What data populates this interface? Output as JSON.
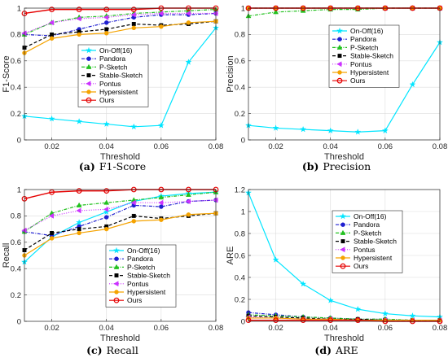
{
  "colors": {
    "On-Off(16)": "#00e5ff",
    "Pandora": "#1f1fd0",
    "P-Sketch": "#22c11f",
    "Stable-Sketch": "#000000",
    "Pontus": "#cc33ff",
    "Hypersistent": "#f5a300",
    "Ours": "#e60000"
  },
  "chart_data": [
    {
      "type": "line",
      "caption_label": "(a)",
      "caption_text": "F1-Score",
      "xlabel": "Threshold",
      "ylabel": "F1-Score",
      "xlim": [
        0.01,
        0.08
      ],
      "ylim": [
        0,
        1
      ],
      "xticks": [
        "0.02",
        "0.04",
        "0.06",
        "0.08"
      ],
      "yticks": [
        "0",
        "0.2",
        "0.4",
        "0.6",
        "0.8",
        "1"
      ],
      "grid": true,
      "legend_position": "center-right",
      "x": [
        0.01,
        0.02,
        0.03,
        0.04,
        0.05,
        0.06,
        0.07,
        0.08
      ],
      "series": [
        {
          "name": "On-Off(16)",
          "values": [
            0.18,
            0.16,
            0.14,
            0.12,
            0.1,
            0.11,
            0.59,
            0.85
          ]
        },
        {
          "name": "Pandora",
          "values": [
            0.8,
            0.79,
            0.84,
            0.89,
            0.93,
            0.95,
            0.95,
            0.96
          ]
        },
        {
          "name": "P-Sketch",
          "values": [
            0.8,
            0.89,
            0.93,
            0.94,
            0.96,
            0.97,
            0.98,
            0.99
          ]
        },
        {
          "name": "Stable-Sketch",
          "values": [
            0.7,
            0.8,
            0.82,
            0.84,
            0.88,
            0.87,
            0.88,
            0.9
          ]
        },
        {
          "name": "Pontus",
          "values": [
            0.81,
            0.89,
            0.92,
            0.93,
            0.95,
            0.96,
            0.96,
            0.96
          ]
        },
        {
          "name": "Hypersistent",
          "values": [
            0.66,
            0.77,
            0.8,
            0.81,
            0.85,
            0.86,
            0.89,
            0.9
          ]
        },
        {
          "name": "Ours",
          "values": [
            0.96,
            0.99,
            0.99,
            0.99,
            0.99,
            1.0,
            1.0,
            1.0
          ]
        }
      ]
    },
    {
      "type": "line",
      "caption_label": "(b)",
      "caption_text": "Precision",
      "xlabel": "Threshold",
      "ylabel": "Precision",
      "xlim": [
        0.01,
        0.08
      ],
      "ylim": [
        0,
        1
      ],
      "xticks": [
        "0.02",
        "0.04",
        "0.06",
        "0.08"
      ],
      "yticks": [
        "0",
        "0.2",
        "0.4",
        "0.6",
        "0.8",
        "1"
      ],
      "grid": true,
      "legend_position": "center-right",
      "x": [
        0.01,
        0.02,
        0.03,
        0.04,
        0.05,
        0.06,
        0.07,
        0.08
      ],
      "series": [
        {
          "name": "On-Off(16)",
          "values": [
            0.11,
            0.09,
            0.08,
            0.07,
            0.06,
            0.07,
            0.42,
            0.74
          ]
        },
        {
          "name": "Pandora",
          "values": [
            1.0,
            1.0,
            1.0,
            1.0,
            1.0,
            1.0,
            1.0,
            1.0
          ]
        },
        {
          "name": "P-Sketch",
          "values": [
            0.94,
            0.97,
            0.98,
            0.99,
            0.99,
            1.0,
            1.0,
            1.0
          ]
        },
        {
          "name": "Stable-Sketch",
          "values": [
            1.0,
            1.0,
            1.0,
            1.0,
            1.0,
            1.0,
            1.0,
            1.0
          ]
        },
        {
          "name": "Pontus",
          "values": [
            1.0,
            1.0,
            1.0,
            1.0,
            1.0,
            1.0,
            1.0,
            1.0
          ]
        },
        {
          "name": "Hypersistent",
          "values": [
            1.0,
            1.0,
            1.0,
            1.0,
            1.0,
            1.0,
            1.0,
            1.0
          ]
        },
        {
          "name": "Ours",
          "values": [
            1.0,
            1.0,
            1.0,
            1.0,
            1.0,
            1.0,
            1.0,
            1.0
          ]
        }
      ]
    },
    {
      "type": "line",
      "caption_label": "(c)",
      "caption_text": "Recall",
      "xlabel": "Threshold",
      "ylabel": "Recall",
      "xlim": [
        0.01,
        0.08
      ],
      "ylim": [
        0,
        1
      ],
      "xticks": [
        "0.02",
        "0.04",
        "0.06",
        "0.08"
      ],
      "yticks": [
        "0",
        "0.2",
        "0.4",
        "0.6",
        "0.8",
        "1"
      ],
      "grid": true,
      "legend_position": "lower-right",
      "x": [
        0.01,
        0.02,
        0.03,
        0.04,
        0.05,
        0.06,
        0.07,
        0.08
      ],
      "series": [
        {
          "name": "On-Off(16)",
          "values": [
            0.45,
            0.64,
            0.75,
            0.83,
            0.91,
            0.95,
            0.97,
            0.98
          ]
        },
        {
          "name": "Pandora",
          "values": [
            0.68,
            0.65,
            0.72,
            0.79,
            0.88,
            0.87,
            0.91,
            0.92
          ]
        },
        {
          "name": "P-Sketch",
          "values": [
            0.68,
            0.82,
            0.88,
            0.9,
            0.92,
            0.94,
            0.96,
            0.98
          ]
        },
        {
          "name": "Stable-Sketch",
          "values": [
            0.54,
            0.67,
            0.7,
            0.72,
            0.8,
            0.78,
            0.8,
            0.82
          ]
        },
        {
          "name": "Pontus",
          "values": [
            0.69,
            0.8,
            0.84,
            0.85,
            0.9,
            0.9,
            0.91,
            0.92
          ]
        },
        {
          "name": "Hypersistent",
          "values": [
            0.5,
            0.63,
            0.67,
            0.7,
            0.76,
            0.77,
            0.81,
            0.82
          ]
        },
        {
          "name": "Ours",
          "values": [
            0.93,
            0.98,
            0.99,
            0.99,
            1.0,
            1.0,
            1.0,
            1.0
          ]
        }
      ]
    },
    {
      "type": "line",
      "caption_label": "(d)",
      "caption_text": "ARE",
      "xlabel": "Threshold",
      "ylabel": "ARE",
      "xlim": [
        0.01,
        0.08
      ],
      "ylim": [
        0,
        1.2
      ],
      "xticks": [
        "0.02",
        "0.04",
        "0.06",
        "0.08"
      ],
      "yticks": [
        "0",
        "0.2",
        "0.4",
        "0.6",
        "0.8",
        "1",
        "1.2"
      ],
      "grid": true,
      "legend_position": "upper-right",
      "x": [
        0.01,
        0.02,
        0.03,
        0.04,
        0.05,
        0.06,
        0.07,
        0.08
      ],
      "series": [
        {
          "name": "On-Off(16)",
          "values": [
            1.17,
            0.56,
            0.34,
            0.19,
            0.11,
            0.07,
            0.05,
            0.04
          ]
        },
        {
          "name": "Pandora",
          "values": [
            0.08,
            0.06,
            0.04,
            0.03,
            0.02,
            0.02,
            0.01,
            0.01
          ]
        },
        {
          "name": "P-Sketch",
          "values": [
            0.06,
            0.05,
            0.04,
            0.03,
            0.02,
            0.02,
            0.01,
            0.01
          ]
        },
        {
          "name": "Stable-Sketch",
          "values": [
            0.05,
            0.04,
            0.03,
            0.02,
            0.02,
            0.01,
            0.01,
            0.01
          ]
        },
        {
          "name": "Pontus",
          "values": [
            0.04,
            0.03,
            0.02,
            0.02,
            0.01,
            0.01,
            0.01,
            0.01
          ]
        },
        {
          "name": "Hypersistent",
          "values": [
            0.03,
            0.03,
            0.02,
            0.02,
            0.01,
            0.01,
            0.01,
            0.01
          ]
        },
        {
          "name": "Ours",
          "values": [
            0.01,
            0.01,
            0.01,
            0.01,
            0.01,
            0.0,
            0.0,
            0.0
          ]
        }
      ]
    }
  ]
}
